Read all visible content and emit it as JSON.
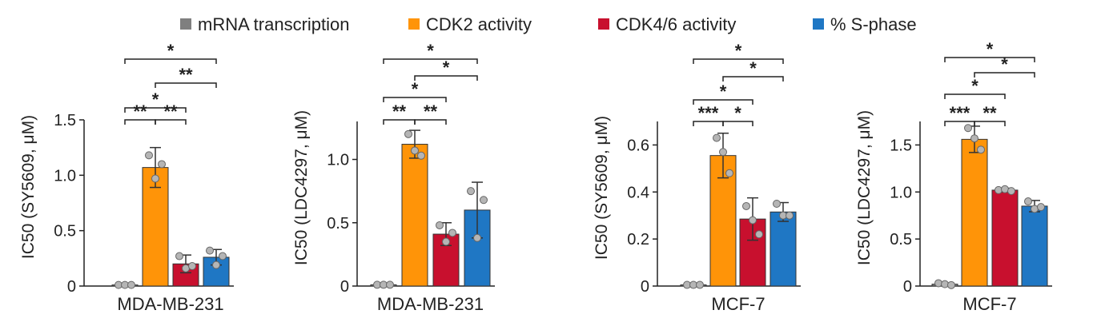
{
  "legend": [
    {
      "name": "mRNA transcription",
      "color": "#7f7f7f"
    },
    {
      "name": "CDK2 activity",
      "color": "#ff9408"
    },
    {
      "name": "CDK4/6 activity",
      "color": "#c8102e"
    },
    {
      "name": "% S-phase",
      "color": "#1f77c4"
    }
  ],
  "chart_data": [
    {
      "type": "bar",
      "categories": [
        "mRNA transcription",
        "CDK2 activity",
        "CDK4/6 activity",
        "% S-phase"
      ],
      "values": [
        0.01,
        1.07,
        0.2,
        0.26
      ],
      "sd": [
        0.0,
        0.18,
        0.08,
        0.07
      ],
      "points": [
        [
          0.01,
          0.01,
          0.01
        ],
        [
          1.18,
          0.97,
          1.1
        ],
        [
          0.27,
          0.16,
          0.18
        ],
        [
          0.32,
          0.19,
          0.27
        ]
      ],
      "xlabel": "MDA-MB-231",
      "ylabel": "IC50 (SY5609, μM)",
      "ylim": [
        0,
        1.5
      ],
      "yticks": [
        0,
        0.5,
        1.0,
        1.5
      ],
      "ytick_labels": [
        "0",
        "0.5",
        "1.0",
        "1.5"
      ],
      "significance": [
        {
          "from": 1,
          "to": 0,
          "label": "**"
        },
        {
          "from": 1,
          "to": 2,
          "label": "**"
        },
        {
          "from": 0,
          "to": 2,
          "label": "*"
        },
        {
          "from": 1,
          "to": 3,
          "label": "**"
        },
        {
          "from": 0,
          "to": 3,
          "label": "*"
        }
      ]
    },
    {
      "type": "bar",
      "categories": [
        "mRNA transcription",
        "CDK2 activity",
        "CDK4/6 activity",
        "% S-phase"
      ],
      "values": [
        0.01,
        1.12,
        0.41,
        0.6
      ],
      "sd": [
        0.0,
        0.11,
        0.09,
        0.22
      ],
      "points": [
        [
          0.01,
          0.01,
          0.01
        ],
        [
          1.2,
          1.07,
          1.03
        ],
        [
          0.48,
          0.35,
          0.42
        ],
        [
          0.75,
          0.38,
          0.68
        ]
      ],
      "xlabel": "MDA-MB-231",
      "ylabel": "IC50 (LDC4297, μM)",
      "ylim": [
        0,
        1.3
      ],
      "yticks": [
        0,
        0.5,
        1.0
      ],
      "ytick_labels": [
        "0",
        "0.5",
        "1.0"
      ],
      "significance": [
        {
          "from": 0,
          "to": 1,
          "label": "**"
        },
        {
          "from": 1,
          "to": 2,
          "label": "**"
        },
        {
          "from": 0,
          "to": 2,
          "label": "*"
        },
        {
          "from": 1,
          "to": 3,
          "label": "*"
        },
        {
          "from": 0,
          "to": 3,
          "label": "*"
        }
      ]
    },
    {
      "type": "bar",
      "categories": [
        "mRNA transcription",
        "CDK2 activity",
        "CDK4/6 activity",
        "% S-phase"
      ],
      "values": [
        0.005,
        0.555,
        0.285,
        0.315
      ],
      "sd": [
        0.0,
        0.095,
        0.09,
        0.04
      ],
      "points": [
        [
          0.005,
          0.005,
          0.005
        ],
        [
          0.63,
          0.57,
          0.48
        ],
        [
          0.34,
          0.28,
          0.22
        ],
        [
          0.35,
          0.3,
          0.3
        ]
      ],
      "xlabel": "MCF-7",
      "ylabel": "IC50 (SY5609, μM)",
      "ylim": [
        0,
        0.7
      ],
      "yticks": [
        0,
        0.2,
        0.4,
        0.6
      ],
      "ytick_labels": [
        "0",
        "0.2",
        "0.4",
        "0.6"
      ],
      "significance": [
        {
          "from": 0,
          "to": 1,
          "label": "***"
        },
        {
          "from": 1,
          "to": 2,
          "label": "*"
        },
        {
          "from": 0,
          "to": 2,
          "label": "*"
        },
        {
          "from": 1,
          "to": 3,
          "label": "*"
        },
        {
          "from": 0,
          "to": 3,
          "label": "*"
        }
      ]
    },
    {
      "type": "bar",
      "categories": [
        "mRNA transcription",
        "CDK2 activity",
        "CDK4/6 activity",
        "% S-phase"
      ],
      "values": [
        0.02,
        1.56,
        1.02,
        0.85
      ],
      "sd": [
        0.01,
        0.14,
        0.02,
        0.06
      ],
      "points": [
        [
          0.03,
          0.02,
          0.01
        ],
        [
          1.68,
          1.57,
          1.45
        ],
        [
          1.02,
          1.03,
          1.01
        ],
        [
          0.9,
          0.82,
          0.84
        ]
      ],
      "xlabel": "MCF-7",
      "ylabel": "IC50 (LDC4297, μM)",
      "ylim": [
        0,
        1.75
      ],
      "yticks": [
        0,
        0.5,
        1.0,
        1.5
      ],
      "ytick_labels": [
        "0",
        "0.5",
        "1.0",
        "1.5"
      ],
      "significance": [
        {
          "from": 0,
          "to": 1,
          "label": "***"
        },
        {
          "from": 1,
          "to": 2,
          "label": "**"
        },
        {
          "from": 0,
          "to": 2,
          "label": "*"
        },
        {
          "from": 1,
          "to": 3,
          "label": "*"
        },
        {
          "from": 0,
          "to": 3,
          "label": "*"
        }
      ]
    }
  ]
}
